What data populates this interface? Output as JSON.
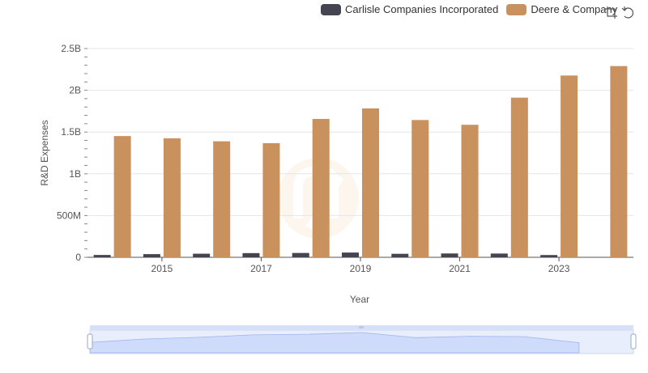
{
  "legend": {
    "items": [
      {
        "label": "Carlisle Companies Incorporated",
        "color": "#454552"
      },
      {
        "label": "Deere & Company",
        "color": "#c9915e"
      }
    ]
  },
  "toolbar": {
    "icons": [
      "crop-zoom-icon",
      "restore-icon"
    ]
  },
  "watermark": "logo-watermark",
  "chart_data": {
    "type": "bar",
    "categories": [
      "2014",
      "2015",
      "2016",
      "2017",
      "2018",
      "2019",
      "2020",
      "2021",
      "2022",
      "2023",
      "2024"
    ],
    "x_tick_labels": [
      "2015",
      "2017",
      "2019",
      "2021",
      "2023"
    ],
    "series": [
      {
        "name": "Carlisle Companies Incorporated",
        "color": "#454552",
        "values": [
          28000000,
          38000000,
          43000000,
          50000000,
          52000000,
          57000000,
          42000000,
          46000000,
          45000000,
          27000000,
          null
        ]
      },
      {
        "name": "Deere & Company",
        "color": "#c9915e",
        "values": [
          1452000000,
          1425000000,
          1389000000,
          1367000000,
          1657000000,
          1783000000,
          1644000000,
          1587000000,
          1912000000,
          2177000000,
          2290000000
        ]
      }
    ],
    "xlabel": "Year",
    "ylabel": "R&D Expenses",
    "ylim": [
      0,
      2500000000
    ],
    "yticks": [
      0,
      500000000,
      1000000000,
      1500000000,
      2000000000,
      2500000000
    ],
    "ytick_labels": [
      "0",
      "500M",
      "1B",
      "1.5B",
      "2B",
      "2.5B"
    ],
    "grid": true,
    "legend_position": "top-right",
    "zoom_slider": {
      "range_start": 0,
      "range_end": 1
    }
  }
}
